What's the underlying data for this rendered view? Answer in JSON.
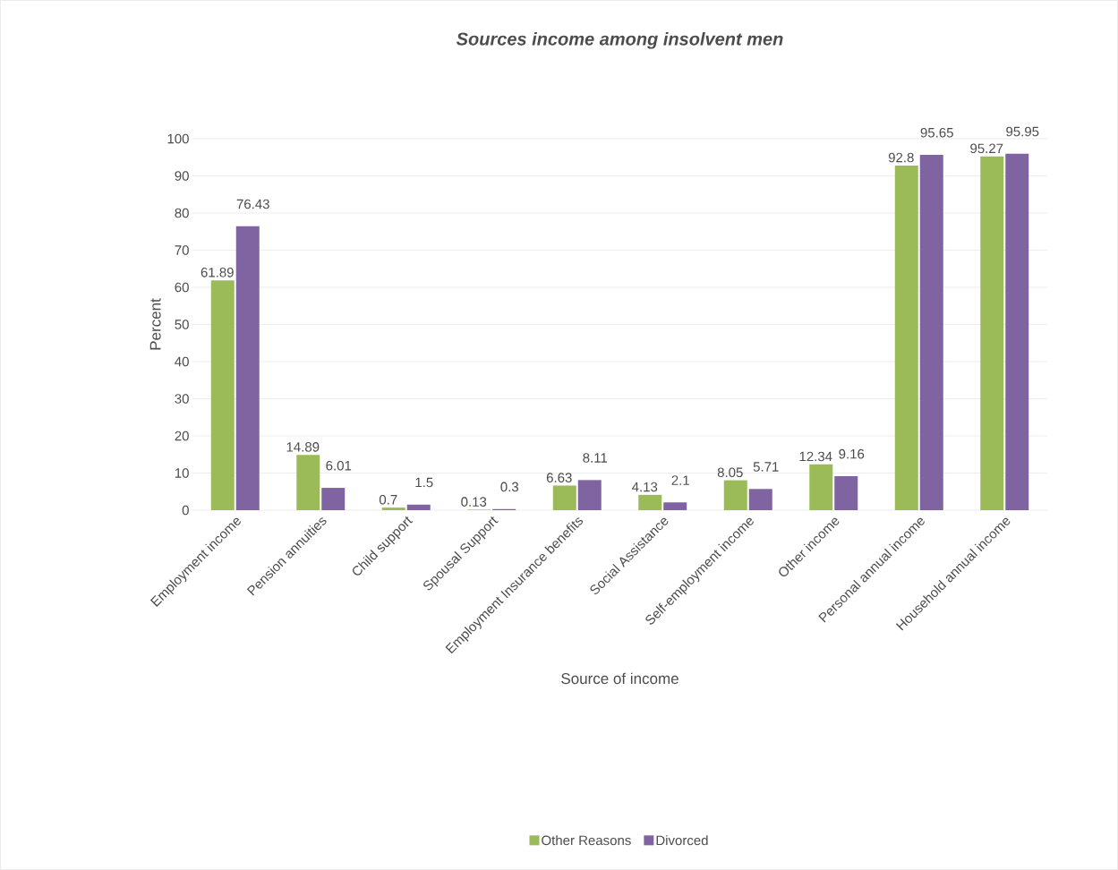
{
  "chart_data": {
    "type": "bar",
    "title": "Sources income among insolvent men",
    "xlabel": "Source of income",
    "ylabel": "Percent",
    "categories": [
      "Employment income",
      "Pension annuities",
      "Child support",
      "Spousal Support",
      "Employment Insurance  benefits",
      "Social Assistance",
      "Self-employment income",
      "Other income",
      "Personal annual income",
      "Household annual income"
    ],
    "series": [
      {
        "name": "Other Reasons",
        "color": "#9bbb59",
        "values": [
          61.89,
          14.89,
          0.7,
          0.13,
          6.63,
          4.13,
          8.05,
          12.34,
          92.8,
          95.27
        ]
      },
      {
        "name": "Divorced",
        "color": "#8064a2",
        "values": [
          76.43,
          6.01,
          1.5,
          0.3,
          8.11,
          2.1,
          5.71,
          9.16,
          95.65,
          95.95
        ]
      }
    ],
    "ylim": [
      0,
      100
    ],
    "yticks": [
      0,
      10,
      20,
      30,
      40,
      50,
      60,
      70,
      80,
      90,
      100
    ],
    "grid": "y",
    "legend": "bottom",
    "data_labels": true
  }
}
